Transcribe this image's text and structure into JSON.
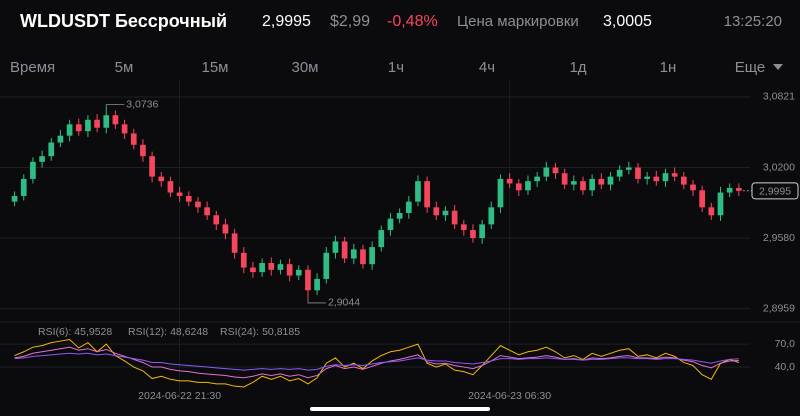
{
  "header": {
    "title": "WLDUSDT Бессрочный",
    "price": "2,9995",
    "usd_price": "$2,99",
    "change": "-0,48%",
    "mark_label": "Цена маркировки",
    "mark_price": "3,0005",
    "time": "13:25:20"
  },
  "timeframes": {
    "items": [
      "Время",
      "5м",
      "15м",
      "30м",
      "1ч",
      "4ч",
      "1д",
      "1н"
    ],
    "active": "15м",
    "more": "Еще"
  },
  "chart_data": [
    {
      "type": "candlestick",
      "up_color": "#2ebd85",
      "down_color": "#f6465d",
      "ylim": [
        2.885,
        3.097
      ],
      "yticks": [
        {
          "value": 2.8959,
          "label": "2,8959"
        },
        {
          "value": 2.958,
          "label": "2,9580"
        },
        {
          "value": 3.02,
          "label": "3,0200"
        },
        {
          "value": 3.0821,
          "label": "3,0821"
        }
      ],
      "xlim": [
        -0.5,
        80
      ],
      "xticks": [
        {
          "value": 18,
          "label": "2024-06-22 21:30"
        },
        {
          "value": 54,
          "label": "2024-06-23 06:30"
        }
      ],
      "last_price": {
        "value": 2.9995,
        "label": "2,9995"
      },
      "annotations": [
        {
          "value": 3.0736,
          "label": "3,0736"
        },
        {
          "value": 2.9044,
          "label": "2,9044"
        }
      ],
      "open": [
        2.99,
        2.995,
        3.01,
        3.025,
        3.03,
        3.042,
        3.048,
        3.058,
        3.052,
        3.062,
        3.055,
        3.066,
        3.058,
        3.05,
        3.04,
        3.03,
        3.012,
        3.008,
        2.998,
        2.995,
        2.99,
        2.985,
        2.978,
        2.97,
        2.962,
        2.945,
        2.932,
        2.928,
        2.936,
        2.93,
        2.935,
        2.925,
        2.93,
        2.912,
        2.922,
        2.945,
        2.955,
        2.94,
        2.948,
        2.935,
        2.95,
        2.965,
        2.975,
        2.98,
        2.99,
        3.008,
        2.985,
        2.978,
        2.982,
        2.97,
        2.965,
        2.958,
        2.97,
        2.985,
        3.01,
        3.006,
        3.0,
        3.008,
        3.012,
        3.02,
        3.015,
        3.005,
        3.008,
        3.0,
        3.01,
        3.005,
        3.012,
        3.018,
        3.02,
        3.01,
        3.012,
        3.008,
        3.015,
        3.012,
        3.005,
        3.0,
        2.985,
        2.978,
        2.998,
        3.002
      ],
      "high": [
        2.999,
        3.014,
        3.029,
        3.035,
        3.046,
        3.053,
        3.062,
        3.063,
        3.066,
        3.067,
        3.0736,
        3.07,
        3.062,
        3.054,
        3.045,
        3.034,
        3.016,
        3.012,
        3.003,
        2.999,
        2.994,
        2.99,
        2.982,
        2.975,
        2.966,
        2.95,
        2.937,
        2.94,
        2.941,
        2.939,
        2.94,
        2.934,
        2.934,
        2.927,
        2.95,
        2.96,
        2.959,
        2.953,
        2.952,
        2.955,
        2.969,
        2.98,
        2.984,
        2.995,
        3.013,
        3.012,
        2.99,
        2.986,
        2.987,
        2.974,
        2.97,
        2.974,
        2.99,
        3.014,
        3.015,
        3.01,
        3.013,
        3.016,
        3.025,
        3.024,
        3.019,
        3.013,
        3.012,
        3.014,
        3.015,
        3.016,
        3.022,
        3.025,
        3.024,
        3.016,
        3.017,
        3.019,
        3.02,
        3.016,
        3.009,
        3.004,
        2.989,
        3.003,
        3.006,
        3.006
      ],
      "low": [
        2.986,
        2.991,
        3.006,
        3.02,
        3.026,
        3.038,
        3.043,
        3.048,
        3.047,
        3.051,
        3.05,
        3.054,
        3.045,
        3.036,
        3.025,
        3.007,
        3.003,
        2.994,
        2.99,
        2.986,
        2.98,
        2.974,
        2.965,
        2.957,
        2.94,
        2.927,
        2.923,
        2.924,
        2.925,
        2.926,
        2.92,
        2.921,
        2.9044,
        2.908,
        2.918,
        2.94,
        2.936,
        2.935,
        2.931,
        2.93,
        2.946,
        2.96,
        2.971,
        2.975,
        2.986,
        2.98,
        2.974,
        2.973,
        2.966,
        2.96,
        2.954,
        2.953,
        2.966,
        2.98,
        3.002,
        2.995,
        2.996,
        3.003,
        3.008,
        3.01,
        3.001,
        3.0,
        2.996,
        2.995,
        3.001,
        3.0,
        3.008,
        3.014,
        3.006,
        3.005,
        3.004,
        3.003,
        3.008,
        3.001,
        2.995,
        2.981,
        2.974,
        2.973,
        2.994,
        2.995
      ],
      "close": [
        2.995,
        3.01,
        3.025,
        3.03,
        3.042,
        3.048,
        3.058,
        3.052,
        3.062,
        3.055,
        3.066,
        3.058,
        3.05,
        3.04,
        3.03,
        3.012,
        3.008,
        2.998,
        2.995,
        2.99,
        2.985,
        2.978,
        2.97,
        2.962,
        2.945,
        2.932,
        2.928,
        2.936,
        2.93,
        2.935,
        2.925,
        2.93,
        2.912,
        2.922,
        2.945,
        2.955,
        2.94,
        2.948,
        2.935,
        2.95,
        2.965,
        2.975,
        2.98,
        2.99,
        3.008,
        2.985,
        2.978,
        2.982,
        2.97,
        2.965,
        2.958,
        2.97,
        2.985,
        3.01,
        3.006,
        3.0,
        3.008,
        3.012,
        3.02,
        3.015,
        3.005,
        3.008,
        3.0,
        3.01,
        3.005,
        3.012,
        3.018,
        3.02,
        3.01,
        3.012,
        3.008,
        3.015,
        3.012,
        3.005,
        3.0,
        2.985,
        2.978,
        2.998,
        3.002,
        2.9995
      ]
    },
    {
      "type": "line",
      "ylim": [
        10,
        95
      ],
      "xlim": [
        -0.5,
        80
      ],
      "yticks": [
        {
          "value": 40,
          "label": "40,0"
        },
        {
          "value": 70,
          "label": "70,0"
        }
      ],
      "series": [
        {
          "name": "RSI(6):",
          "last_label": "45,9528",
          "color": "#f0b90b",
          "values": [
            55,
            60,
            66,
            68,
            72,
            74,
            76,
            65,
            72,
            60,
            70,
            55,
            48,
            40,
            35,
            25,
            28,
            24,
            22,
            22,
            20,
            20,
            18,
            18,
            15,
            14,
            20,
            28,
            24,
            28,
            22,
            25,
            18,
            26,
            45,
            52,
            40,
            45,
            38,
            48,
            55,
            60,
            62,
            66,
            70,
            45,
            40,
            44,
            36,
            34,
            30,
            42,
            55,
            68,
            62,
            56,
            60,
            62,
            66,
            60,
            52,
            55,
            50,
            58,
            54,
            58,
            62,
            64,
            54,
            56,
            52,
            58,
            54,
            46,
            42,
            30,
            24,
            45,
            50,
            45.9528
          ]
        },
        {
          "name": "RSI(12):",
          "last_label": "48,6248",
          "color": "#e66fd2",
          "values": [
            52,
            54,
            58,
            60,
            62,
            64,
            66,
            62,
            64,
            60,
            63,
            58,
            54,
            50,
            46,
            40,
            40,
            37,
            35,
            34,
            32,
            31,
            30,
            29,
            27,
            26,
            28,
            31,
            29,
            31,
            28,
            30,
            26,
            29,
            38,
            42,
            38,
            40,
            37,
            41,
            45,
            48,
            50,
            53,
            56,
            47,
            44,
            45,
            42,
            40,
            38,
            42,
            48,
            55,
            53,
            51,
            52,
            53,
            55,
            53,
            50,
            51,
            49,
            52,
            51,
            52,
            54,
            55,
            52,
            52,
            51,
            53,
            52,
            49,
            47,
            42,
            39,
            45,
            48,
            48.6248
          ]
        },
        {
          "name": "RSI(24):",
          "last_label": "50,8185",
          "color": "#8a5cf5",
          "values": [
            51,
            52,
            54,
            55,
            56,
            57,
            58,
            57,
            58,
            56,
            57,
            55,
            53,
            51,
            49,
            46,
            46,
            44,
            43,
            42,
            41,
            40,
            39,
            38,
            37,
            36,
            37,
            38,
            37,
            38,
            37,
            38,
            36,
            37,
            41,
            43,
            42,
            43,
            42,
            44,
            46,
            47,
            48,
            50,
            52,
            49,
            48,
            48,
            46,
            45,
            44,
            46,
            48,
            51,
            51,
            50,
            51,
            51,
            52,
            51,
            50,
            50,
            49,
            50,
            50,
            51,
            52,
            52,
            51,
            51,
            50,
            51,
            51,
            50,
            49,
            47,
            45,
            48,
            50,
            50.8185
          ]
        }
      ]
    }
  ]
}
